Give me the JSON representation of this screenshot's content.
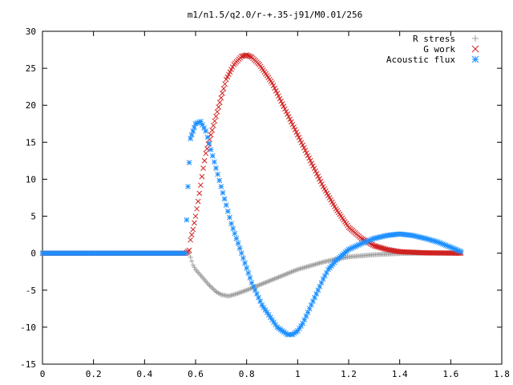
{
  "chart_data": {
    "type": "scatter",
    "title": "m1/n1.5/q2.0/r-+.35-j91/M0.01/256",
    "xlabel": "",
    "ylabel": "",
    "xlim": [
      0,
      1.8
    ],
    "ylim": [
      -15,
      30
    ],
    "xticks": [
      "0",
      "0.2",
      "0.4",
      "0.6",
      "0.8",
      "1",
      "1.2",
      "1.4",
      "1.6",
      "1.8"
    ],
    "yticks": [
      "-15",
      "-10",
      "-5",
      "0",
      "5",
      "10",
      "15",
      "20",
      "25",
      "30"
    ],
    "grid": false,
    "legend_position": "top-right",
    "series": [
      {
        "name": "R stress",
        "marker": "plus",
        "color": "#a0a0a0",
        "points": [
          [
            0,
            0
          ],
          [
            0.55,
            0
          ],
          [
            0.575,
            0
          ],
          [
            0.59,
            -1.6
          ],
          [
            0.6,
            -2.2
          ],
          [
            0.62,
            -3.0
          ],
          [
            0.65,
            -4.2
          ],
          [
            0.68,
            -5.2
          ],
          [
            0.7,
            -5.6
          ],
          [
            0.73,
            -5.8
          ],
          [
            0.76,
            -5.5
          ],
          [
            0.8,
            -5.0
          ],
          [
            0.85,
            -4.3
          ],
          [
            0.9,
            -3.6
          ],
          [
            0.95,
            -2.9
          ],
          [
            1.0,
            -2.2
          ],
          [
            1.05,
            -1.7
          ],
          [
            1.1,
            -1.2
          ],
          [
            1.15,
            -0.8
          ],
          [
            1.2,
            -0.5
          ],
          [
            1.3,
            -0.2
          ],
          [
            1.4,
            -0.05
          ],
          [
            1.5,
            0
          ],
          [
            1.64,
            0
          ]
        ]
      },
      {
        "name": "G work",
        "marker": "cross",
        "color": "#d02020",
        "points": [
          [
            0,
            0
          ],
          [
            0.56,
            0
          ],
          [
            0.575,
            0.4
          ],
          [
            0.58,
            1.8
          ],
          [
            0.59,
            3.2
          ],
          [
            0.6,
            5.0
          ],
          [
            0.61,
            7.0
          ],
          [
            0.62,
            9.2
          ],
          [
            0.63,
            11.5
          ],
          [
            0.64,
            13.5
          ],
          [
            0.66,
            16.0
          ],
          [
            0.68,
            18.5
          ],
          [
            0.7,
            21.0
          ],
          [
            0.72,
            23.5
          ],
          [
            0.75,
            25.5
          ],
          [
            0.78,
            26.6
          ],
          [
            0.8,
            26.8
          ],
          [
            0.82,
            26.5
          ],
          [
            0.85,
            25.5
          ],
          [
            0.9,
            23.0
          ],
          [
            0.95,
            19.5
          ],
          [
            1.0,
            16.0
          ],
          [
            1.05,
            12.5
          ],
          [
            1.1,
            9.0
          ],
          [
            1.15,
            6.0
          ],
          [
            1.2,
            3.5
          ],
          [
            1.25,
            2.0
          ],
          [
            1.3,
            1.0
          ],
          [
            1.35,
            0.5
          ],
          [
            1.4,
            0.2
          ],
          [
            1.5,
            0.05
          ],
          [
            1.64,
            0
          ]
        ]
      },
      {
        "name": "Acoustic flux",
        "marker": "star",
        "color": "#1e90ff",
        "points": [
          [
            0,
            0
          ],
          [
            0.56,
            0
          ],
          [
            0.57,
            9.0
          ],
          [
            0.58,
            15.5
          ],
          [
            0.59,
            16.5
          ],
          [
            0.6,
            17.5
          ],
          [
            0.62,
            17.8
          ],
          [
            0.64,
            16.5
          ],
          [
            0.66,
            14.0
          ],
          [
            0.68,
            11.5
          ],
          [
            0.7,
            9.0
          ],
          [
            0.72,
            6.5
          ],
          [
            0.74,
            4.0
          ],
          [
            0.76,
            2.0
          ],
          [
            0.78,
            0.0
          ],
          [
            0.8,
            -2.0
          ],
          [
            0.82,
            -4.0
          ],
          [
            0.84,
            -5.5
          ],
          [
            0.86,
            -7.0
          ],
          [
            0.88,
            -8.0
          ],
          [
            0.9,
            -9.0
          ],
          [
            0.92,
            -10.0
          ],
          [
            0.94,
            -10.5
          ],
          [
            0.96,
            -11.0
          ],
          [
            0.98,
            -11.0
          ],
          [
            1.0,
            -10.5
          ],
          [
            1.02,
            -9.5
          ],
          [
            1.04,
            -8.0
          ],
          [
            1.06,
            -6.5
          ],
          [
            1.08,
            -5.0
          ],
          [
            1.1,
            -3.5
          ],
          [
            1.12,
            -2.2
          ],
          [
            1.15,
            -1.0
          ],
          [
            1.2,
            0.5
          ],
          [
            1.25,
            1.3
          ],
          [
            1.3,
            2.0
          ],
          [
            1.35,
            2.4
          ],
          [
            1.4,
            2.6
          ],
          [
            1.45,
            2.4
          ],
          [
            1.5,
            2.0
          ],
          [
            1.55,
            1.5
          ],
          [
            1.6,
            0.8
          ],
          [
            1.64,
            0.2
          ]
        ]
      }
    ]
  }
}
